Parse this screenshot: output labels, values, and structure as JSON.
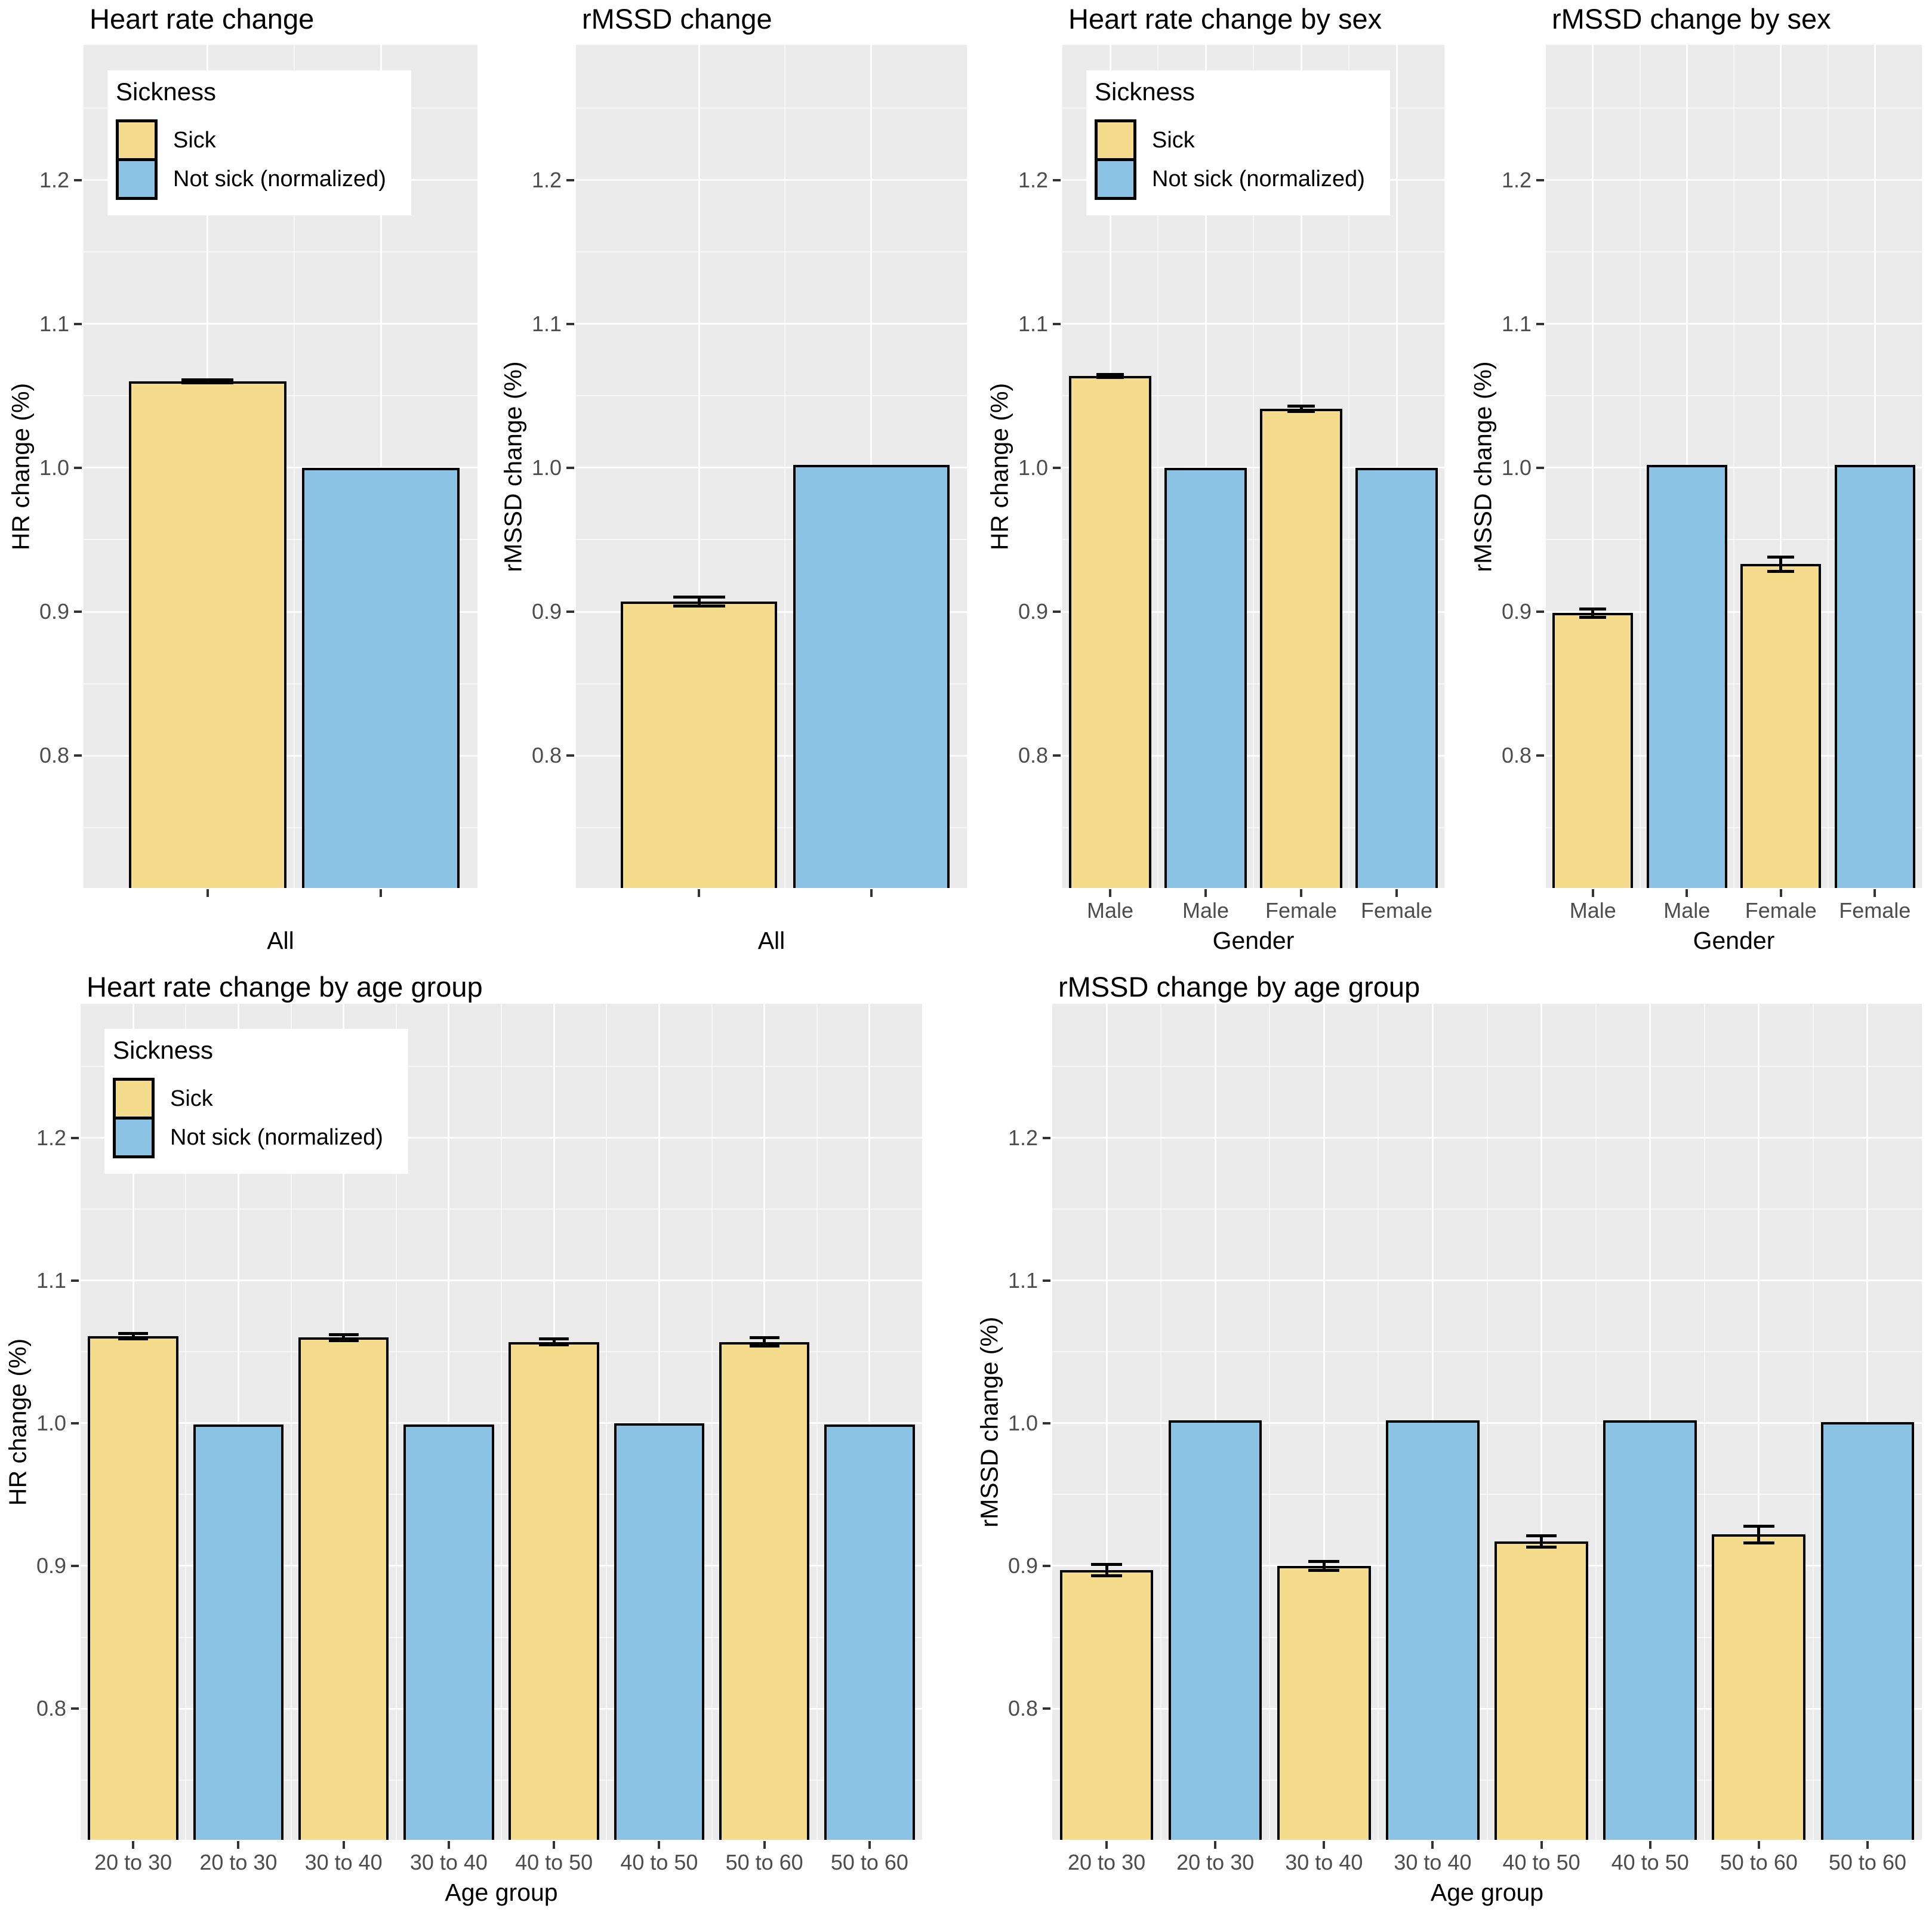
{
  "colors": {
    "sick": "#F5DC8C",
    "not_sick": "#8BC3E4",
    "panel_bg": "#EBEBEB",
    "grid_major": "#FFFFFF",
    "bar_outline": "#000000",
    "tick_label": "#4D4D4D",
    "title_text": "#000000"
  },
  "legend": {
    "title": "Sickness",
    "items": [
      {
        "label": "Sick",
        "color": "#F5DC8C"
      },
      {
        "label": "Not sick (normalized)",
        "color": "#8BC3E4"
      }
    ]
  },
  "axes": {
    "y_tick_labels": [
      "1.2",
      "1.1",
      "1.0",
      "0.9",
      "0.8"
    ],
    "y_tick_values": [
      1.2,
      1.1,
      1.0,
      0.9,
      0.8
    ],
    "y_domain": [
      0.708,
      1.294
    ],
    "y_major_gridlines": [
      0.8,
      0.9,
      1.0,
      1.1,
      1.2
    ],
    "y_minor_gridlines": [
      0.75,
      0.85,
      0.95,
      1.05,
      1.15,
      1.25
    ],
    "grid": "on",
    "legend_position": "top-left-inside"
  },
  "chart_data": [
    {
      "id": "hr-all",
      "type": "bar",
      "title": "Heart rate change",
      "ylabel": "HR change (%)",
      "xlabel": "All",
      "legend_visible": true,
      "bars": [
        {
          "x": "",
          "sickness": "Sick",
          "value": 1.06,
          "error": 0.001
        },
        {
          "x": "",
          "sickness": "Not sick (normalized)",
          "value": 1.0,
          "error": 0
        }
      ]
    },
    {
      "id": "rmssd-all",
      "type": "bar",
      "title": "rMSSD change",
      "ylabel": "rMSSD change (%)",
      "xlabel": "All",
      "legend_visible": false,
      "bars": [
        {
          "x": "",
          "sickness": "Sick",
          "value": 0.907,
          "error": 0.003
        },
        {
          "x": "",
          "sickness": "Not sick (normalized)",
          "value": 1.002,
          "error": 0
        }
      ]
    },
    {
      "id": "hr-sex",
      "type": "bar",
      "title": "Heart rate change by sex",
      "ylabel": "HR change (%)",
      "xlabel": "Gender",
      "legend_visible": true,
      "bars": [
        {
          "x": "Male",
          "sickness": "Sick",
          "value": 1.064,
          "error": 0.001
        },
        {
          "x": "Male",
          "sickness": "Not sick (normalized)",
          "value": 1.0,
          "error": 0
        },
        {
          "x": "Female",
          "sickness": "Sick",
          "value": 1.041,
          "error": 0.002
        },
        {
          "x": "Female",
          "sickness": "Not sick (normalized)",
          "value": 1.0,
          "error": 0
        }
      ]
    },
    {
      "id": "rmssd-sex",
      "type": "bar",
      "title": "rMSSD change by sex",
      "ylabel": "rMSSD change (%)",
      "xlabel": "Gender",
      "legend_visible": false,
      "bars": [
        {
          "x": "Male",
          "sickness": "Sick",
          "value": 0.899,
          "error": 0.003
        },
        {
          "x": "Male",
          "sickness": "Not sick (normalized)",
          "value": 1.002,
          "error": 0
        },
        {
          "x": "Female",
          "sickness": "Sick",
          "value": 0.933,
          "error": 0.005
        },
        {
          "x": "Female",
          "sickness": "Not sick (normalized)",
          "value": 1.002,
          "error": 0
        }
      ]
    },
    {
      "id": "hr-age",
      "type": "bar",
      "title": "Heart rate change by age group",
      "ylabel": "HR change (%)",
      "xlabel": "Age group",
      "legend_visible": true,
      "bars": [
        {
          "x": "20 to 30",
          "sickness": "Sick",
          "value": 1.061,
          "error": 0.002
        },
        {
          "x": "20 to 30",
          "sickness": "Not sick (normalized)",
          "value": 0.999,
          "error": 0
        },
        {
          "x": "30 to 40",
          "sickness": "Sick",
          "value": 1.06,
          "error": 0.002
        },
        {
          "x": "30 to 40",
          "sickness": "Not sick (normalized)",
          "value": 0.999,
          "error": 0
        },
        {
          "x": "40 to 50",
          "sickness": "Sick",
          "value": 1.057,
          "error": 0.002
        },
        {
          "x": "40 to 50",
          "sickness": "Not sick (normalized)",
          "value": 1.0,
          "error": 0
        },
        {
          "x": "50 to 60",
          "sickness": "Sick",
          "value": 1.057,
          "error": 0.003
        },
        {
          "x": "50 to 60",
          "sickness": "Not sick (normalized)",
          "value": 0.999,
          "error": 0
        }
      ]
    },
    {
      "id": "rmssd-age",
      "type": "bar",
      "title": "rMSSD change by age group",
      "ylabel": "rMSSD change (%)",
      "xlabel": "Age group",
      "legend_visible": false,
      "bars": [
        {
          "x": "20 to 30",
          "sickness": "Sick",
          "value": 0.897,
          "error": 0.004
        },
        {
          "x": "20 to 30",
          "sickness": "Not sick (normalized)",
          "value": 1.002,
          "error": 0
        },
        {
          "x": "30 to 40",
          "sickness": "Sick",
          "value": 0.9,
          "error": 0.003
        },
        {
          "x": "30 to 40",
          "sickness": "Not sick (normalized)",
          "value": 1.002,
          "error": 0
        },
        {
          "x": "40 to 50",
          "sickness": "Sick",
          "value": 0.917,
          "error": 0.004
        },
        {
          "x": "40 to 50",
          "sickness": "Not sick (normalized)",
          "value": 1.002,
          "error": 0
        },
        {
          "x": "50 to 60",
          "sickness": "Sick",
          "value": 0.922,
          "error": 0.006
        },
        {
          "x": "50 to 60",
          "sickness": "Not sick (normalized)",
          "value": 1.001,
          "error": 0
        }
      ]
    }
  ]
}
